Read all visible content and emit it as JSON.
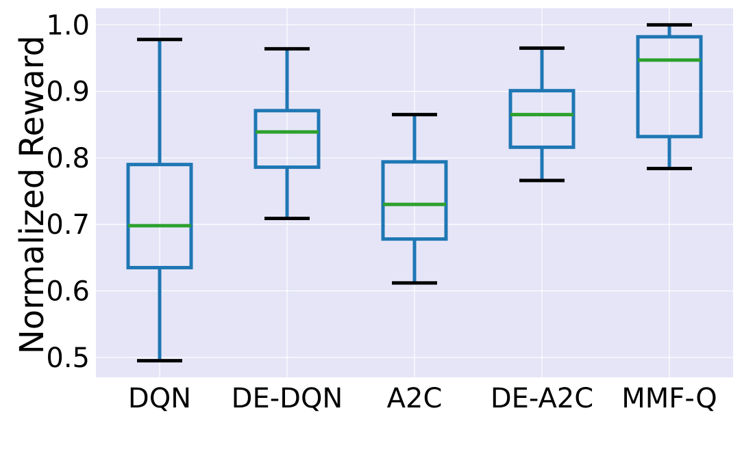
{
  "chart_data": {
    "type": "box",
    "title": "",
    "xlabel": "",
    "ylabel": "Normalized Reward",
    "ylim": [
      0.47,
      1.025
    ],
    "yticks": [
      "0.5",
      "0.6",
      "0.7",
      "0.8",
      "0.9",
      "1.0"
    ],
    "grid": true,
    "categories": [
      "DQN",
      "DE-DQN",
      "A2C",
      "DE-A2C",
      "MMF-Q"
    ],
    "boxes": [
      {
        "category": "DQN",
        "whisker_low": 0.495,
        "q1": 0.635,
        "median": 0.698,
        "q3": 0.79,
        "whisker_high": 0.978
      },
      {
        "category": "DE-DQN",
        "whisker_low": 0.709,
        "q1": 0.786,
        "median": 0.839,
        "q3": 0.871,
        "whisker_high": 0.964
      },
      {
        "category": "A2C",
        "whisker_low": 0.612,
        "q1": 0.678,
        "median": 0.73,
        "q3": 0.794,
        "whisker_high": 0.865
      },
      {
        "category": "DE-A2C",
        "whisker_low": 0.766,
        "q1": 0.816,
        "median": 0.865,
        "q3": 0.901,
        "whisker_high": 0.965
      },
      {
        "category": "MMF-Q",
        "whisker_low": 0.784,
        "q1": 0.832,
        "median": 0.947,
        "q3": 0.982,
        "whisker_high": 1.0
      }
    ],
    "colors": {
      "background": "#e5e5f7",
      "grid": "#ffffff",
      "box": "#1f77b4",
      "median": "#2ca02c",
      "cap": "#000000"
    }
  }
}
